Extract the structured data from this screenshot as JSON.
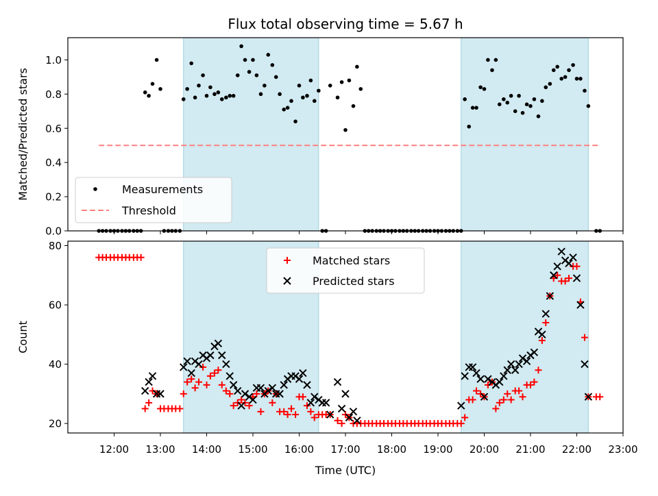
{
  "figure": {
    "title": "Flux total observing time = 5.67 h",
    "xlabel": "Time (UTC)",
    "xticks": [
      "12:00",
      "13:00",
      "14:00",
      "15:00",
      "16:00",
      "17:00",
      "18:00",
      "19:00",
      "20:00",
      "21:00",
      "22:00",
      "23:00"
    ],
    "xlim_hours": [
      11.0,
      23.0
    ],
    "shaded_color": "#add8e6",
    "shaded_intervals_hours": [
      [
        13.5,
        16.42
      ],
      [
        19.5,
        22.25
      ]
    ]
  },
  "chart_data": [
    {
      "type": "scatter",
      "ylabel": "Matched/Predicted stars",
      "ylim": [
        0,
        1.13
      ],
      "yticks": [
        "0.0",
        "0.2",
        "0.4",
        "0.6",
        "0.8",
        "1.0"
      ],
      "ytick_values": [
        0,
        0.2,
        0.4,
        0.6,
        0.8,
        1.0
      ],
      "legend_position": "lower-left",
      "series": [
        {
          "name": "Measurements",
          "kind": "points",
          "color": "#000000",
          "x": [
            11.67,
            11.75,
            11.83,
            11.92,
            12.0,
            12.08,
            12.17,
            12.25,
            12.33,
            12.42,
            12.5,
            12.58,
            12.67,
            12.75,
            12.83,
            12.92,
            13.0,
            13.08,
            13.17,
            13.25,
            13.33,
            13.42,
            13.5,
            13.58,
            13.67,
            13.75,
            13.83,
            13.92,
            14.0,
            14.08,
            14.17,
            14.25,
            14.33,
            14.42,
            14.5,
            14.58,
            14.67,
            14.75,
            14.83,
            14.92,
            15.0,
            15.08,
            15.17,
            15.25,
            15.33,
            15.42,
            15.5,
            15.58,
            15.67,
            15.75,
            15.83,
            15.92,
            16.0,
            16.08,
            16.17,
            16.25,
            16.33,
            16.42,
            16.5,
            16.58,
            16.67,
            16.83,
            16.92,
            17.0,
            17.08,
            17.17,
            17.25,
            17.33,
            17.42,
            17.5,
            17.58,
            17.67,
            17.75,
            17.83,
            17.92,
            18.0,
            18.08,
            18.17,
            18.25,
            18.33,
            18.42,
            18.5,
            18.58,
            18.67,
            18.75,
            18.83,
            18.92,
            19.0,
            19.08,
            19.17,
            19.25,
            19.33,
            19.42,
            19.5,
            19.58,
            19.67,
            19.75,
            19.83,
            19.92,
            20.0,
            20.08,
            20.17,
            20.25,
            20.33,
            20.42,
            20.5,
            20.58,
            20.67,
            20.75,
            20.83,
            20.92,
            21.0,
            21.08,
            21.17,
            21.25,
            21.33,
            21.42,
            21.5,
            21.58,
            21.67,
            21.75,
            21.83,
            21.92,
            22.0,
            22.08,
            22.17,
            22.25,
            22.42,
            22.5
          ],
          "y": [
            0,
            0,
            0,
            0,
            0,
            0,
            0,
            0,
            0,
            0,
            0,
            0,
            0.81,
            0.79,
            0.86,
            1.0,
            0.83,
            0,
            0,
            0,
            0,
            0,
            0.77,
            0.83,
            0.98,
            0.78,
            0.85,
            0.91,
            0.79,
            0.84,
            0.8,
            0.81,
            0.77,
            0.78,
            0.79,
            0.79,
            0.91,
            1.08,
            1.0,
            0.93,
            1.0,
            0.91,
            0.8,
            0.85,
            1.03,
            0.97,
            0.9,
            0.8,
            0.71,
            0.72,
            0.76,
            0.64,
            0.85,
            0.78,
            0.79,
            0.88,
            0.76,
            0.82,
            0,
            0,
            0.85,
            0.78,
            0.87,
            0.59,
            0.88,
            0.73,
            0.96,
            0.83,
            0,
            0,
            0,
            0,
            0,
            0,
            0,
            0,
            0,
            0,
            0,
            0,
            0,
            0,
            0,
            0,
            0,
            0,
            0,
            0,
            0,
            0,
            0,
            0,
            0,
            0,
            0.77,
            0.61,
            0.72,
            0.72,
            0.84,
            0.83,
            1.0,
            0.94,
            1.0,
            0.74,
            0.77,
            0.75,
            0.79,
            0.7,
            0.79,
            0.69,
            0.74,
            0.73,
            0.77,
            0.67,
            0.76,
            0.84,
            0.86,
            0.94,
            0.96,
            0.89,
            0.9,
            0.94,
            0.97,
            0.89,
            0.89,
            0.82,
            0.73,
            0.0,
            0.0
          ]
        },
        {
          "name": "Threshold",
          "kind": "dashed-line",
          "color": "#ff7f7f",
          "x": [
            11.67,
            22.5
          ],
          "y": [
            0.5,
            0.5
          ]
        }
      ]
    },
    {
      "type": "scatter",
      "ylabel": "Count",
      "ylim": [
        16.8,
        81.5
      ],
      "yticks": [
        "20",
        "40",
        "60",
        "80"
      ],
      "ytick_values": [
        20,
        40,
        60,
        80
      ],
      "legend_position": "upper-center",
      "series": [
        {
          "name": "Matched stars",
          "marker": "plus",
          "color": "#ff0000",
          "x": [
            11.67,
            11.75,
            11.83,
            11.92,
            12.0,
            12.08,
            12.17,
            12.25,
            12.33,
            12.42,
            12.5,
            12.58,
            12.67,
            12.75,
            12.83,
            12.92,
            13.0,
            13.08,
            13.17,
            13.25,
            13.33,
            13.42,
            13.5,
            13.58,
            13.67,
            13.75,
            13.83,
            13.92,
            14.0,
            14.08,
            14.17,
            14.25,
            14.33,
            14.42,
            14.5,
            14.58,
            14.67,
            14.75,
            14.83,
            14.92,
            15.0,
            15.08,
            15.17,
            15.25,
            15.33,
            15.42,
            15.5,
            15.58,
            15.67,
            15.75,
            15.83,
            15.92,
            16.0,
            16.08,
            16.17,
            16.25,
            16.33,
            16.42,
            16.5,
            16.58,
            16.67,
            16.83,
            16.92,
            17.0,
            17.08,
            17.17,
            17.25,
            17.33,
            17.42,
            17.5,
            17.58,
            17.67,
            17.75,
            17.83,
            17.92,
            18.0,
            18.08,
            18.17,
            18.25,
            18.33,
            18.42,
            18.5,
            18.58,
            18.67,
            18.75,
            18.83,
            18.92,
            19.0,
            19.08,
            19.17,
            19.25,
            19.33,
            19.42,
            19.5,
            19.58,
            19.67,
            19.75,
            19.83,
            19.92,
            20.0,
            20.08,
            20.17,
            20.25,
            20.33,
            20.42,
            20.5,
            20.58,
            20.67,
            20.75,
            20.83,
            20.92,
            21.0,
            21.08,
            21.17,
            21.25,
            21.33,
            21.42,
            21.5,
            21.58,
            21.67,
            21.75,
            21.83,
            21.92,
            22.0,
            22.08,
            22.17,
            22.25,
            22.42,
            22.5
          ],
          "y": [
            76,
            76,
            76,
            76,
            76,
            76,
            76,
            76,
            76,
            76,
            76,
            76,
            25,
            27,
            31,
            30,
            25,
            25,
            25,
            25,
            25,
            25,
            30,
            34,
            35,
            32,
            34,
            39,
            33,
            36,
            37,
            38,
            33,
            31,
            30,
            26,
            27,
            28,
            27,
            26,
            29,
            30,
            24,
            30,
            31,
            27,
            30,
            24,
            24,
            23,
            25,
            23,
            29,
            29,
            26,
            24,
            22,
            23,
            23,
            23,
            23,
            21,
            20,
            23,
            22,
            20,
            20,
            20,
            20,
            20,
            20,
            20,
            20,
            20,
            20,
            20,
            20,
            20,
            20,
            20,
            20,
            20,
            20,
            20,
            20,
            20,
            20,
            20,
            20,
            20,
            20,
            20,
            20,
            20,
            22,
            28,
            28,
            31,
            30,
            29,
            33,
            34,
            25,
            27,
            28,
            30,
            28,
            31,
            31,
            29,
            33,
            33,
            34,
            38,
            48,
            54,
            63,
            69,
            70,
            68,
            68,
            69,
            73,
            73,
            61,
            49,
            29,
            29,
            29
          ]
        },
        {
          "name": "Predicted stars",
          "marker": "x",
          "color": "#000000",
          "x": [
            12.67,
            12.75,
            12.83,
            12.92,
            13.0,
            13.5,
            13.58,
            13.67,
            13.75,
            13.83,
            13.92,
            14.0,
            14.08,
            14.17,
            14.25,
            14.33,
            14.42,
            14.5,
            14.58,
            14.67,
            14.75,
            14.83,
            14.92,
            15.0,
            15.08,
            15.17,
            15.25,
            15.33,
            15.42,
            15.5,
            15.58,
            15.67,
            15.75,
            15.83,
            15.92,
            16.0,
            16.08,
            16.17,
            16.25,
            16.33,
            16.42,
            16.5,
            16.58,
            16.67,
            16.83,
            16.92,
            17.0,
            17.08,
            17.17,
            17.25,
            19.5,
            19.58,
            19.67,
            19.75,
            19.83,
            19.92,
            20.0,
            20.08,
            20.17,
            20.25,
            20.33,
            20.42,
            20.5,
            20.58,
            20.67,
            20.75,
            20.83,
            20.92,
            21.0,
            21.08,
            21.17,
            21.25,
            21.33,
            21.42,
            21.5,
            21.58,
            21.67,
            21.75,
            21.83,
            21.92,
            22.0,
            22.08,
            22.17,
            22.25
          ],
          "y": [
            31,
            34,
            36,
            30,
            30,
            39,
            41,
            37,
            41,
            40,
            43,
            42,
            43,
            46,
            47,
            43,
            40,
            36,
            33,
            31,
            26,
            30,
            29,
            28,
            32,
            32,
            30,
            31,
            32,
            30,
            30,
            33,
            35,
            36,
            36,
            35,
            37,
            33,
            27,
            29,
            28,
            27,
            27,
            23,
            34,
            25,
            30,
            22,
            24,
            21,
            26,
            36,
            39,
            39,
            37,
            35,
            29,
            35,
            34,
            33,
            34,
            36,
            38,
            40,
            38,
            40,
            42,
            41,
            43,
            44,
            51,
            50,
            57,
            63,
            70,
            73,
            78,
            75,
            74,
            76,
            69,
            60,
            40,
            29
          ]
        }
      ]
    }
  ]
}
